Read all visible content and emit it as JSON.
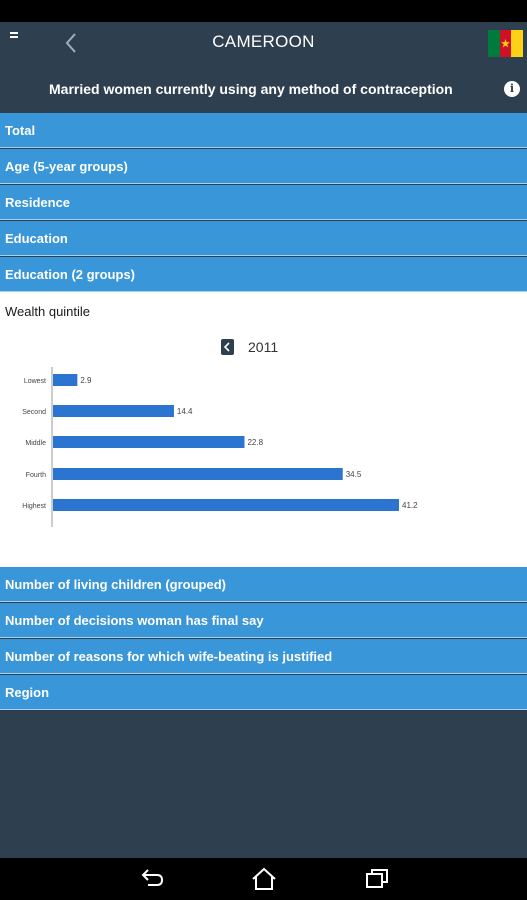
{
  "header": {
    "title": "CAMEROON",
    "subtitle": "Married women currently using any method of contraception"
  },
  "colors": {
    "background": "#2e3f4f",
    "section": "#3996d8",
    "bar": "#2b74cf",
    "flag_green": "#007a3d",
    "flag_red": "#ce1126",
    "flag_yellow": "#fcd116"
  },
  "sections_top": [
    {
      "label": "Total"
    },
    {
      "label": "Age (5-year groups)"
    },
    {
      "label": "Residence"
    },
    {
      "label": "Education"
    },
    {
      "label": "Education (2 groups)"
    }
  ],
  "expanded": {
    "title": "Wealth quintile",
    "year": "2011"
  },
  "chart_data": {
    "type": "bar",
    "orientation": "horizontal",
    "categories": [
      "Lowest",
      "Second",
      "Middle",
      "Fourth",
      "Highest"
    ],
    "values": [
      2.9,
      14.4,
      22.8,
      34.5,
      41.2
    ],
    "value_labels": [
      "2.9",
      "14.4",
      "22.8",
      "34.5",
      "41.2"
    ],
    "xlim": [
      0,
      50
    ],
    "grid": false,
    "legend": "none"
  },
  "sections_bottom": [
    {
      "label": "Number of living children (grouped)"
    },
    {
      "label": "Number of decisions woman has final say"
    },
    {
      "label": "Number of reasons for which wife-beating is justified"
    },
    {
      "label": "Region"
    }
  ],
  "nav_icons": [
    "back-icon",
    "home-icon",
    "recent-apps-icon"
  ]
}
